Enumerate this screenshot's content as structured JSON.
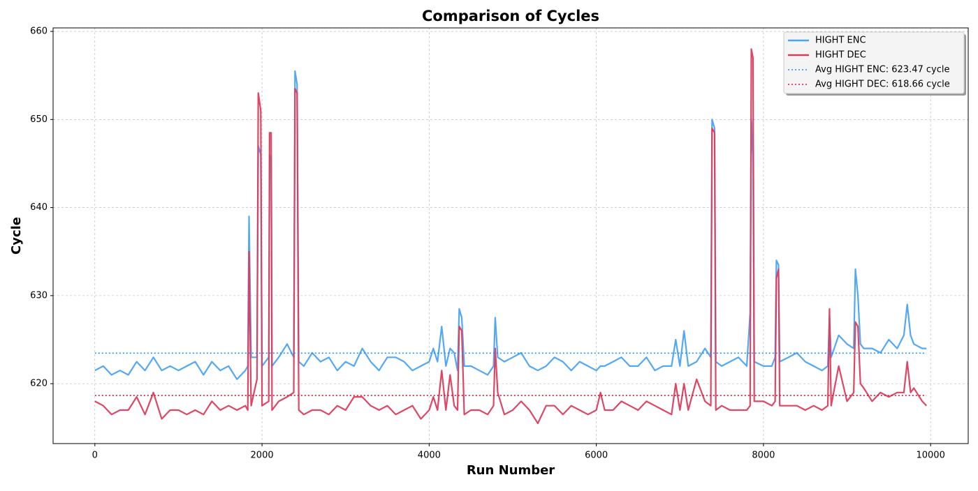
{
  "chart_data": {
    "type": "line",
    "title": "Comparison of Cycles",
    "x_label": "Run Number",
    "y_label": "Cycle",
    "x": [
      0,
      100,
      200,
      300,
      400,
      500,
      600,
      700,
      800,
      900,
      1000,
      1100,
      1200,
      1300,
      1400,
      1500,
      1600,
      1700,
      1800,
      1830,
      1845,
      1870,
      1940,
      1955,
      1985,
      2000,
      2080,
      2090,
      2110,
      2120,
      2200,
      2300,
      2380,
      2395,
      2420,
      2440,
      2500,
      2600,
      2700,
      2800,
      2900,
      3000,
      3100,
      3200,
      3300,
      3400,
      3500,
      3600,
      3700,
      3800,
      3900,
      4000,
      4050,
      4100,
      4150,
      4200,
      4250,
      4300,
      4340,
      4360,
      4390,
      4420,
      4500,
      4600,
      4700,
      4770,
      4790,
      4820,
      4900,
      5000,
      5100,
      5200,
      5300,
      5400,
      5500,
      5600,
      5700,
      5800,
      5900,
      6000,
      6050,
      6100,
      6200,
      6300,
      6400,
      6500,
      6600,
      6700,
      6800,
      6900,
      6950,
      7000,
      7050,
      7100,
      7200,
      7300,
      7370,
      7385,
      7415,
      7430,
      7500,
      7600,
      7700,
      7800,
      7840,
      7855,
      7875,
      7890,
      8000,
      8100,
      8140,
      8155,
      8180,
      8195,
      8300,
      8400,
      8500,
      8600,
      8700,
      8770,
      8790,
      8810,
      8900,
      9000,
      9080,
      9100,
      9130,
      9160,
      9200,
      9300,
      9400,
      9500,
      9600,
      9680,
      9720,
      9760,
      9800,
      9900,
      9950
    ],
    "series": [
      {
        "name": "HIGHT ENC",
        "color": "#4aa3f4",
        "values": [
          621.5,
          622,
          621,
          621.5,
          621,
          622.5,
          621.5,
          623,
          621.5,
          622,
          621.5,
          622,
          622.5,
          621,
          622.5,
          621.5,
          622,
          620.5,
          621.5,
          622,
          639,
          623,
          623,
          647,
          646,
          622,
          623,
          646,
          645.5,
          622,
          623,
          624.5,
          623,
          655.5,
          654,
          622.5,
          622,
          623.5,
          622.5,
          623,
          621.5,
          622.5,
          622,
          624,
          622.5,
          621.5,
          623,
          623,
          622.5,
          621.5,
          622,
          622.5,
          624,
          622.5,
          626.5,
          622,
          624,
          623.5,
          621.5,
          628.5,
          627.5,
          622,
          622,
          621.5,
          621,
          622,
          627.5,
          623,
          622.5,
          623,
          623.5,
          622,
          621.5,
          622,
          623,
          622.5,
          621.5,
          622.5,
          622,
          621.5,
          622,
          622,
          622.5,
          623,
          622,
          622,
          623,
          621.5,
          622,
          622,
          625,
          622,
          626,
          622,
          622.5,
          624,
          623,
          650,
          649,
          622.5,
          622,
          622.5,
          623,
          622,
          628,
          650,
          646,
          622.5,
          622,
          622,
          623,
          634,
          633.5,
          622.5,
          623,
          623.5,
          622.5,
          622,
          621.5,
          622,
          627.5,
          623,
          625.5,
          624.5,
          624,
          633,
          630,
          624.5,
          624,
          624,
          623.5,
          625,
          624,
          625.5,
          629,
          625.5,
          624.5,
          624,
          624
        ]
      },
      {
        "name": "HIGHT DEC",
        "color": "#dc3c5c",
        "values": [
          618,
          617.5,
          616.5,
          617,
          617,
          618.5,
          616.5,
          619,
          616,
          617,
          617,
          616.5,
          617,
          616.5,
          618,
          617,
          617.5,
          617,
          617.5,
          617,
          635,
          617.5,
          620.5,
          653,
          651,
          617.5,
          618,
          648.5,
          648.5,
          617,
          618,
          618.5,
          619,
          653.5,
          653,
          617,
          616.5,
          617,
          617,
          616.5,
          617.5,
          617,
          618.5,
          618.5,
          617.5,
          617,
          617.5,
          616.5,
          617,
          617.5,
          616,
          617,
          618.5,
          617,
          621.5,
          617,
          621,
          617.5,
          617,
          626.5,
          626,
          616.5,
          617,
          617,
          616.5,
          617.5,
          624,
          619,
          616.5,
          617,
          618,
          617,
          615.5,
          617.5,
          617.5,
          616.5,
          617.5,
          617,
          616.5,
          617,
          619,
          617,
          617,
          618,
          617.5,
          617,
          618,
          617.5,
          617,
          616.5,
          620,
          617,
          620,
          617,
          620.5,
          618,
          617.5,
          649,
          648.5,
          617,
          617.5,
          617,
          617,
          617,
          617.5,
          658,
          657,
          618,
          618,
          617.5,
          618,
          632,
          633,
          617.5,
          617.5,
          617.5,
          617,
          617.5,
          617,
          617.5,
          628.5,
          617.5,
          622,
          618,
          619,
          627,
          626.5,
          620,
          619.5,
          618,
          619,
          618.5,
          619,
          619,
          622.5,
          619,
          619.5,
          618,
          617.5
        ]
      }
    ],
    "avg_lines": [
      {
        "label": "Avg HIGHT ENC: 623.47 cycle",
        "value": 623.47,
        "color": "#1e90ff"
      },
      {
        "label": "Avg HIGHT DEC: 618.66 cycle",
        "value": 618.66,
        "color": "#dc143c"
      }
    ],
    "xlim": [
      -500,
      10450
    ],
    "ylim": [
      613.2,
      660.4
    ],
    "xticks": [
      0,
      2000,
      4000,
      6000,
      8000,
      10000
    ],
    "yticks": [
      620,
      630,
      640,
      650,
      660
    ],
    "grid": true,
    "legend": "upper right"
  }
}
